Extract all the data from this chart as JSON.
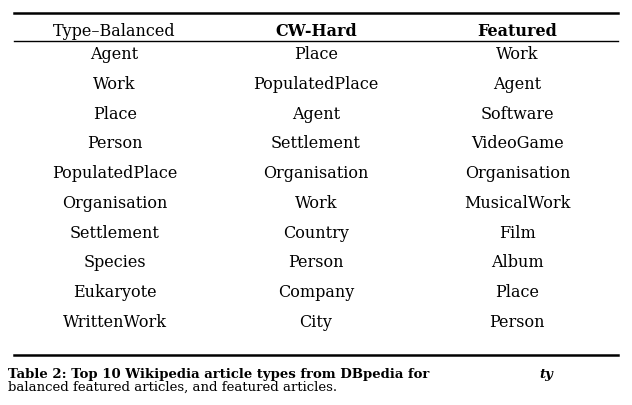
{
  "headers": [
    "Type–Balanced",
    "CW-Hard",
    "Featured"
  ],
  "col1": [
    "Agent",
    "Work",
    "Place",
    "Person",
    "PopulatedPlace",
    "Organisation",
    "Settlement",
    "Species",
    "Eukaryote",
    "WrittenWork"
  ],
  "col2": [
    "Place",
    "PopulatedPlace",
    "Agent",
    "Settlement",
    "Organisation",
    "Work",
    "Country",
    "Person",
    "Company",
    "City"
  ],
  "col3": [
    "Work",
    "Agent",
    "Software",
    "VideoGame",
    "Organisation",
    "MusicalWork",
    "Film",
    "Album",
    "Place",
    "Person"
  ],
  "caption": "Table 2: Top 10 Wikipedia article types from DBpedia for ",
  "caption_italic": "ty",
  "caption2": "balanced featured articles, and featured articles.",
  "header_fontsize": 11.5,
  "body_fontsize": 11.5,
  "caption_fontsize": 9.5,
  "bg_color": "#ffffff",
  "text_color": "#000000"
}
